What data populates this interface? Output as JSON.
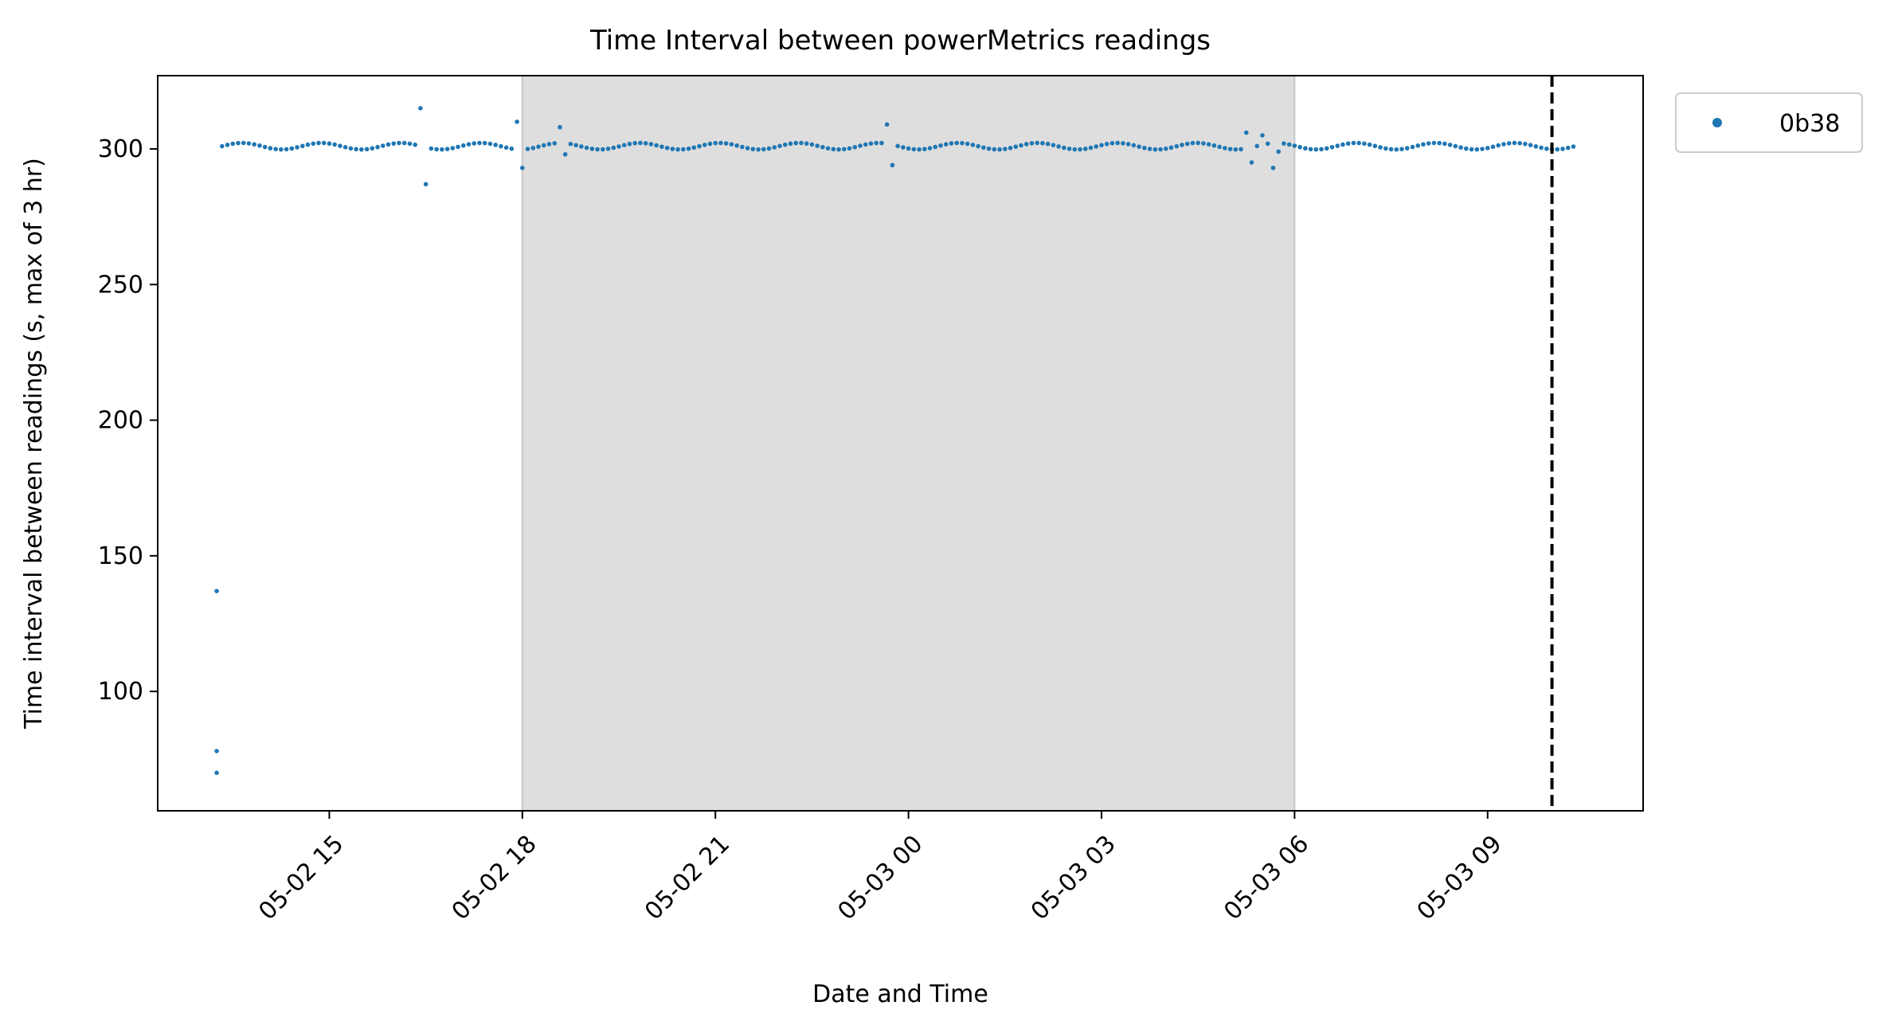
{
  "chart_data": {
    "type": "scatter",
    "title": "Time Interval between powerMetrics readings",
    "xlabel": "Date and Time",
    "ylabel": "Time interval between readings (s, max of 3 hr)",
    "x_ticks": [
      "05-02 15",
      "05-02 18",
      "05-02 21",
      "05-03 00",
      "05-03 03",
      "05-03 06",
      "05-03 09"
    ],
    "y_ticks": [
      "100",
      "150",
      "200",
      "250",
      "300"
    ],
    "y_tick_values": [
      100,
      150,
      200,
      250,
      300
    ],
    "xlim": [
      "05-02 12:20",
      "05-03 11:25"
    ],
    "ylim": [
      56,
      327
    ],
    "grid": false,
    "legend": {
      "position": "outside-top-right",
      "entries": [
        "0b38"
      ]
    },
    "shaded_region": {
      "start": "05-02 18:00",
      "end": "05-03 06:00",
      "color": "#dedede"
    },
    "vline": {
      "x": "05-03 10:00",
      "style": "dashed",
      "color": "#000000"
    },
    "series": [
      {
        "name": "0b38",
        "color": "#1f77b4",
        "outliers": [
          {
            "x": "05-02 13:15",
            "y": 137
          },
          {
            "x": "05-02 13:15",
            "y": 78
          },
          {
            "x": "05-02 13:15",
            "y": 70
          },
          {
            "x": "05-02 16:25",
            "y": 315
          },
          {
            "x": "05-02 16:30",
            "y": 287
          },
          {
            "x": "05-02 17:55",
            "y": 310
          },
          {
            "x": "05-02 18:00",
            "y": 293
          },
          {
            "x": "05-02 18:35",
            "y": 308
          },
          {
            "x": "05-02 18:40",
            "y": 298
          },
          {
            "x": "05-02 23:40",
            "y": 309
          },
          {
            "x": "05-02 23:45",
            "y": 294
          },
          {
            "x": "05-03 05:15",
            "y": 306
          },
          {
            "x": "05-03 05:20",
            "y": 295
          },
          {
            "x": "05-03 05:30",
            "y": 305
          },
          {
            "x": "05-03 05:40",
            "y": 293
          },
          {
            "x": "05-03 05:45",
            "y": 299
          }
        ],
        "baseline": {
          "start": "05-02 13:20",
          "end": "05-03 10:20",
          "interval_minutes": 5,
          "value": 301,
          "jitter": 1.2
        }
      }
    ]
  }
}
